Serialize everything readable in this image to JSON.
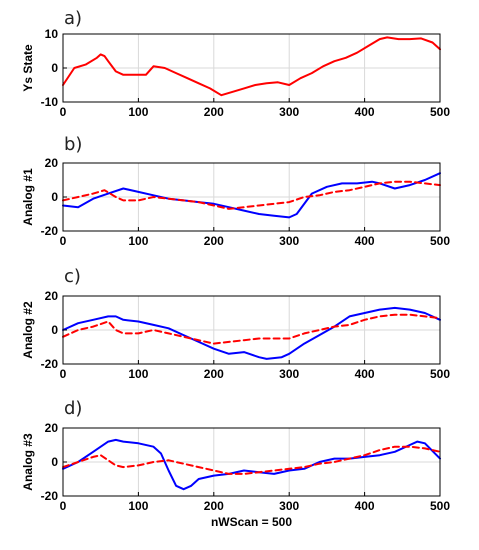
{
  "chart_data": [
    {
      "type": "line",
      "panel_label": "a)",
      "ylabel": "Ys State",
      "xlabel": "",
      "xlim": [
        0,
        500
      ],
      "ylim": [
        -10,
        10
      ],
      "xticks": [
        0,
        100,
        200,
        300,
        400,
        500
      ],
      "yticks": [
        -10,
        0,
        10
      ],
      "grid": true,
      "series": [
        {
          "color": "#ff0000",
          "style": "solid",
          "x": [
            0,
            15,
            30,
            45,
            50,
            55,
            60,
            70,
            80,
            95,
            110,
            120,
            135,
            150,
            165,
            180,
            195,
            210,
            225,
            240,
            255,
            270,
            285,
            300,
            315,
            330,
            345,
            360,
            375,
            390,
            405,
            420,
            430,
            445,
            460,
            475,
            490,
            500
          ],
          "values": [
            -5,
            0,
            1,
            3,
            4,
            3.5,
            2,
            -1,
            -2,
            -2,
            -2,
            0.5,
            0,
            -1.5,
            -3,
            -4.5,
            -6,
            -8,
            -7,
            -6,
            -5,
            -4.5,
            -4.2,
            -5,
            -3,
            -1.5,
            0.5,
            2,
            3,
            4.5,
            6.5,
            8.5,
            9,
            8.5,
            8.5,
            8.7,
            7.5,
            5.5
          ]
        }
      ]
    },
    {
      "type": "line",
      "panel_label": "b)",
      "ylabel": "Analog #1",
      "xlabel": "",
      "xlim": [
        0,
        500
      ],
      "ylim": [
        -20,
        20
      ],
      "xticks": [
        0,
        100,
        200,
        300,
        400,
        500
      ],
      "yticks": [
        -20,
        0,
        20
      ],
      "grid": true,
      "series": [
        {
          "color": "#0000ff",
          "style": "solid",
          "x": [
            0,
            20,
            40,
            60,
            80,
            100,
            120,
            140,
            160,
            180,
            200,
            220,
            240,
            260,
            280,
            300,
            310,
            330,
            350,
            370,
            390,
            410,
            420,
            440,
            460,
            480,
            500
          ],
          "values": [
            -5,
            -6,
            -1,
            2,
            5,
            3,
            1,
            -1,
            -2,
            -3,
            -4,
            -6,
            -8,
            -10,
            -11,
            -12,
            -10,
            2,
            6,
            8,
            8,
            9,
            8,
            5,
            7,
            10,
            14
          ]
        },
        {
          "color": "#ff0000",
          "style": "dashed",
          "x": [
            0,
            20,
            40,
            55,
            70,
            80,
            100,
            120,
            140,
            160,
            180,
            200,
            220,
            240,
            260,
            280,
            300,
            320,
            340,
            360,
            380,
            400,
            420,
            440,
            460,
            480,
            500
          ],
          "values": [
            -2,
            0,
            2,
            4,
            0,
            -2,
            -2,
            0,
            -1,
            -2,
            -3,
            -5,
            -7,
            -6,
            -5,
            -4,
            -3,
            0,
            1,
            3,
            4,
            6,
            8,
            9,
            9,
            8,
            7
          ]
        }
      ]
    },
    {
      "type": "line",
      "panel_label": "c)",
      "ylabel": "Analog #2",
      "xlabel": "",
      "xlim": [
        0,
        500
      ],
      "ylim": [
        -20,
        20
      ],
      "xticks": [
        0,
        100,
        200,
        300,
        400,
        500
      ],
      "yticks": [
        -20,
        0,
        20
      ],
      "grid": true,
      "series": [
        {
          "color": "#0000ff",
          "style": "solid",
          "x": [
            0,
            20,
            40,
            60,
            70,
            80,
            100,
            120,
            140,
            160,
            180,
            200,
            220,
            240,
            260,
            270,
            290,
            300,
            320,
            340,
            360,
            380,
            400,
            420,
            440,
            460,
            480,
            500
          ],
          "values": [
            0,
            4,
            6,
            8,
            8,
            6,
            5,
            3,
            1,
            -3,
            -7,
            -11,
            -14,
            -13,
            -16,
            -17,
            -16,
            -14,
            -8,
            -3,
            2,
            8,
            10,
            12,
            13,
            12,
            10,
            6
          ]
        },
        {
          "color": "#ff0000",
          "style": "dashed",
          "x": [
            0,
            20,
            40,
            60,
            70,
            80,
            100,
            120,
            140,
            160,
            180,
            200,
            220,
            240,
            260,
            280,
            300,
            320,
            340,
            360,
            380,
            400,
            420,
            440,
            460,
            480,
            500
          ],
          "values": [
            -4,
            0,
            2,
            5,
            0,
            -2,
            -2,
            0,
            -2,
            -4,
            -6,
            -8,
            -7,
            -6,
            -5,
            -5,
            -5,
            -2,
            0,
            2,
            3,
            6,
            8,
            9,
            9,
            8,
            7
          ]
        }
      ]
    },
    {
      "type": "line",
      "panel_label": "d)",
      "ylabel": "Analog #3",
      "xlabel": "nWScan = 500",
      "xlim": [
        0,
        500
      ],
      "ylim": [
        -20,
        20
      ],
      "xticks": [
        0,
        100,
        200,
        300,
        400,
        500
      ],
      "yticks": [
        -20,
        0,
        20
      ],
      "grid": true,
      "series": [
        {
          "color": "#0000ff",
          "style": "solid",
          "x": [
            0,
            20,
            40,
            60,
            70,
            80,
            100,
            120,
            130,
            140,
            150,
            160,
            170,
            180,
            200,
            220,
            240,
            260,
            280,
            300,
            320,
            340,
            360,
            380,
            400,
            420,
            440,
            460,
            470,
            480,
            500
          ],
          "values": [
            -4,
            0,
            6,
            12,
            13,
            12,
            11,
            9,
            5,
            -5,
            -14,
            -16,
            -14,
            -10,
            -8,
            -7,
            -5,
            -6,
            -7,
            -5,
            -4,
            0,
            2,
            2,
            3,
            4,
            6,
            10,
            12,
            11,
            2
          ]
        },
        {
          "color": "#ff0000",
          "style": "dashed",
          "x": [
            0,
            20,
            40,
            50,
            60,
            70,
            80,
            100,
            120,
            140,
            160,
            180,
            200,
            220,
            240,
            260,
            280,
            300,
            320,
            340,
            360,
            380,
            400,
            420,
            440,
            460,
            480,
            500
          ],
          "values": [
            -3,
            0,
            3,
            4,
            1,
            -2,
            -3,
            -2,
            0,
            1,
            -1,
            -3,
            -5,
            -7,
            -7,
            -6,
            -5,
            -4,
            -3,
            -1,
            0,
            2,
            4,
            7,
            9,
            9,
            8,
            6
          ]
        }
      ]
    }
  ]
}
